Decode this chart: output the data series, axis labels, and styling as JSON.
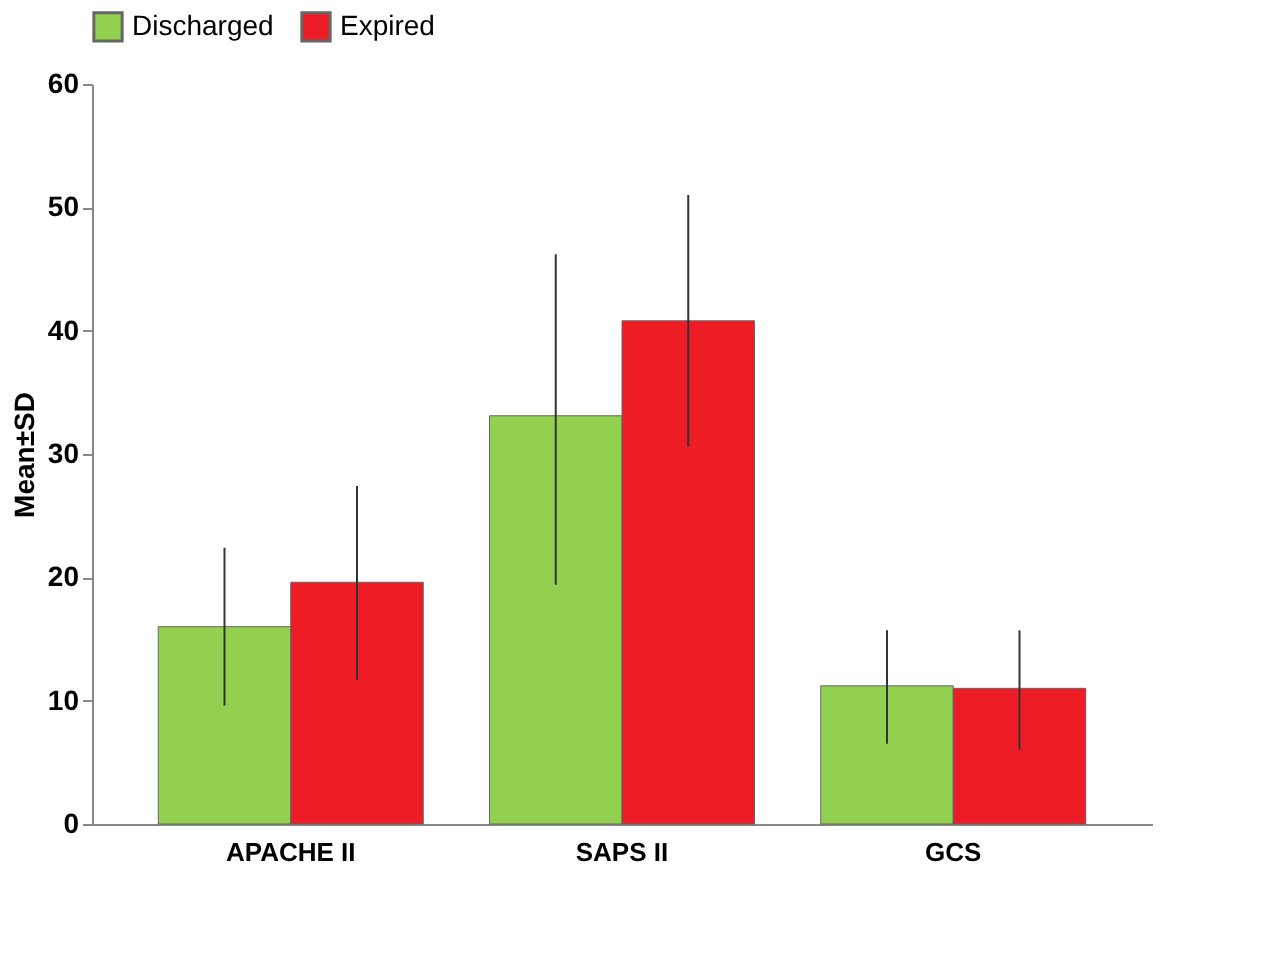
{
  "chart_data": {
    "type": "bar",
    "ylabel": "Mean±SD",
    "categories": [
      "APACHE II",
      "SAPS II",
      "GCS"
    ],
    "series": [
      {
        "name": "Discharged",
        "color": "#92d050",
        "values": [
          16.0,
          33.1,
          11.2
        ],
        "errors": [
          [
            9.6,
            22.4
          ],
          [
            19.4,
            46.2
          ],
          [
            6.5,
            15.7
          ]
        ]
      },
      {
        "name": "Expired",
        "color": "#ee1c25",
        "values": [
          19.6,
          40.8,
          11.0
        ],
        "errors": [
          [
            11.7,
            27.4
          ],
          [
            30.6,
            51.0
          ],
          [
            6.0,
            15.7
          ]
        ]
      }
    ],
    "ylim": [
      0,
      60
    ],
    "yticks": [
      0,
      10,
      20,
      30,
      40,
      50,
      60
    ],
    "grid": false,
    "legend": "top"
  }
}
